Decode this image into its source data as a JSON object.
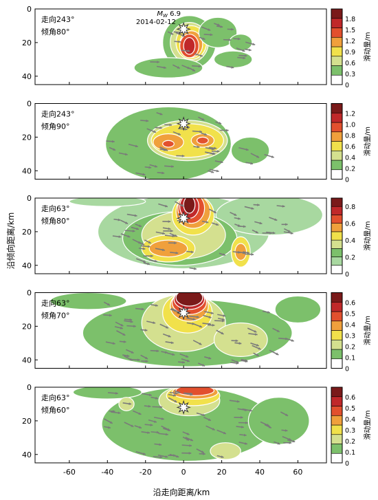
{
  "figure": {
    "xlabel": "沿走向距离/km",
    "ylabel": "沿倾向距离/km",
    "colorbar_label": "滑动量/m",
    "xticks": [
      -60,
      -40,
      -20,
      0,
      20,
      40,
      60
    ],
    "xlim": [
      -78,
      75
    ],
    "epicenter_label_mw": "M",
    "epicenter_label_mw_sub": "W",
    "epicenter_label_mag": "6.9",
    "epicenter_label_date": "2014-02-12"
  },
  "chart_data": [
    {
      "type": "heatmap",
      "strike_label": "走向243°",
      "dip_label": "倾角80°",
      "ylim": [
        0,
        45
      ],
      "yticks": [
        0,
        20,
        40
      ],
      "colorbar_ticks": [
        "0",
        "0.3",
        "0.6",
        "0.9",
        "1.2",
        "1.5",
        "1.8"
      ],
      "colorbar_colors": [
        "#ffffff",
        "#7cc06b",
        "#d4e08f",
        "#f1e14b",
        "#f0a03c",
        "#e2502e",
        "#c0282a",
        "#7a1a1a"
      ],
      "patches": [
        {
          "cx": 3,
          "cy": 20,
          "rx": 14,
          "ry": 16,
          "level": 1
        },
        {
          "cx": 3,
          "cy": 20,
          "rx": 10,
          "ry": 12,
          "level": 2
        },
        {
          "cx": 4,
          "cy": 20,
          "rx": 8,
          "ry": 10,
          "level": 3
        },
        {
          "cx": 4,
          "cy": 21,
          "rx": 6,
          "ry": 8,
          "level": 4
        },
        {
          "cx": 3,
          "cy": 22,
          "rx": 5,
          "ry": 7,
          "level": 5
        },
        {
          "cx": 3,
          "cy": 22,
          "rx": 3,
          "ry": 5,
          "level": 6
        },
        {
          "cx": 18,
          "cy": 14,
          "rx": 10,
          "ry": 9,
          "level": 1
        },
        {
          "cx": 26,
          "cy": 30,
          "rx": 10,
          "ry": 5,
          "level": 1
        },
        {
          "cx": 30,
          "cy": 20,
          "rx": 6,
          "ry": 5,
          "level": 1
        },
        {
          "cx": -8,
          "cy": 35,
          "rx": 18,
          "ry": 6,
          "level": 1
        }
      ],
      "epicenter": {
        "x": 0,
        "y": 12
      }
    },
    {
      "type": "heatmap",
      "strike_label": "走向243°",
      "dip_label": "倾角90°",
      "ylim": [
        0,
        45
      ],
      "yticks": [
        0,
        20,
        40
      ],
      "colorbar_ticks": [
        "0",
        "0.2",
        "0.4",
        "0.6",
        "0.8",
        "1.0",
        "1.2"
      ],
      "colorbar_colors": [
        "#ffffff",
        "#7cc06b",
        "#d4e08f",
        "#f1e14b",
        "#f0a03c",
        "#e2502e",
        "#c0282a",
        "#7a1a1a"
      ],
      "patches": [
        {
          "cx": -8,
          "cy": 24,
          "rx": 33,
          "ry": 22,
          "level": 1
        },
        {
          "cx": 35,
          "cy": 28,
          "rx": 10,
          "ry": 8,
          "level": 1
        },
        {
          "cx": 2,
          "cy": 22,
          "rx": 21,
          "ry": 12,
          "level": 2
        },
        {
          "cx": 2,
          "cy": 22,
          "rx": 19,
          "ry": 10,
          "level": 3
        },
        {
          "cx": -8,
          "cy": 23,
          "rx": 8,
          "ry": 5,
          "level": 4
        },
        {
          "cx": 10,
          "cy": 22,
          "rx": 6,
          "ry": 4,
          "level": 4
        },
        {
          "cx": -8,
          "cy": 24,
          "rx": 3,
          "ry": 2,
          "level": 5
        },
        {
          "cx": 10,
          "cy": 22,
          "rx": 3,
          "ry": 2,
          "level": 5
        }
      ],
      "epicenter": {
        "x": 0,
        "y": 12
      }
    },
    {
      "type": "heatmap",
      "strike_label": "走向63°",
      "dip_label": "倾角80°",
      "ylim": [
        0,
        45
      ],
      "yticks": [
        0,
        20,
        40
      ],
      "colorbar_ticks": [
        "0",
        "0.2",
        "0.4",
        "0.6",
        "0.8"
      ],
      "colorbar_colors": [
        "#ffffff",
        "#a8d8a0",
        "#7cc06b",
        "#d4e08f",
        "#f1e14b",
        "#f0a03c",
        "#e2502e",
        "#c0282a",
        "#7a1a1a"
      ],
      "patches": [
        {
          "cx": 0,
          "cy": 20,
          "rx": 45,
          "ry": 22,
          "level": 1
        },
        {
          "cx": 45,
          "cy": 10,
          "rx": 28,
          "ry": 12,
          "level": 1
        },
        {
          "cx": -40,
          "cy": 2,
          "rx": 20,
          "ry": 3,
          "level": 1
        },
        {
          "cx": -2,
          "cy": 24,
          "rx": 30,
          "ry": 16,
          "level": 2
        },
        {
          "cx": 0,
          "cy": 22,
          "rx": 22,
          "ry": 14,
          "level": 3
        },
        {
          "cx": -8,
          "cy": 30,
          "rx": 14,
          "ry": 8,
          "level": 4
        },
        {
          "cx": 30,
          "cy": 32,
          "rx": 5,
          "ry": 9,
          "level": 4
        },
        {
          "cx": 5,
          "cy": 10,
          "rx": 11,
          "ry": 12,
          "level": 4
        },
        {
          "cx": -8,
          "cy": 30,
          "rx": 10,
          "ry": 5,
          "level": 5
        },
        {
          "cx": 5,
          "cy": 8,
          "rx": 9,
          "ry": 10,
          "level": 5
        },
        {
          "cx": 30,
          "cy": 32,
          "rx": 3,
          "ry": 5,
          "level": 5
        },
        {
          "cx": 4,
          "cy": 6,
          "rx": 7,
          "ry": 9,
          "level": 6
        },
        {
          "cx": 3,
          "cy": 5,
          "rx": 5,
          "ry": 7,
          "level": 7
        },
        {
          "cx": 3,
          "cy": 4,
          "rx": 3,
          "ry": 5,
          "level": 8
        }
      ],
      "epicenter": {
        "x": 0,
        "y": 12
      }
    },
    {
      "type": "heatmap",
      "strike_label": "走向63°",
      "dip_label": "倾角70°",
      "ylim": [
        0,
        45
      ],
      "yticks": [
        0,
        20,
        40
      ],
      "colorbar_ticks": [
        "0",
        "0.1",
        "0.2",
        "0.3",
        "0.4",
        "0.5",
        "0.6"
      ],
      "colorbar_colors": [
        "#ffffff",
        "#7cc06b",
        "#d4e08f",
        "#f1e14b",
        "#f0a03c",
        "#e2502e",
        "#c0282a",
        "#7a1a1a"
      ],
      "patches": [
        {
          "cx": 2,
          "cy": 24,
          "rx": 55,
          "ry": 20,
          "level": 1
        },
        {
          "cx": 60,
          "cy": 10,
          "rx": 12,
          "ry": 8,
          "level": 1
        },
        {
          "cx": -50,
          "cy": 5,
          "rx": 20,
          "ry": 5,
          "level": 1
        },
        {
          "cx": 0,
          "cy": 18,
          "rx": 22,
          "ry": 17,
          "level": 2
        },
        {
          "cx": 30,
          "cy": 28,
          "rx": 14,
          "ry": 10,
          "level": 2
        },
        {
          "cx": 2,
          "cy": 12,
          "rx": 13,
          "ry": 12,
          "level": 3
        },
        {
          "cx": 3,
          "cy": 8,
          "rx": 10,
          "ry": 9,
          "level": 4
        },
        {
          "cx": 3,
          "cy": 6,
          "rx": 9,
          "ry": 7,
          "level": 5
        },
        {
          "cx": 3,
          "cy": 4,
          "rx": 8,
          "ry": 6,
          "level": 6
        },
        {
          "cx": 3,
          "cy": 3,
          "rx": 7,
          "ry": 5,
          "level": 7
        }
      ],
      "epicenter": {
        "x": 0,
        "y": 12
      }
    },
    {
      "type": "heatmap",
      "strike_label": "走向63°",
      "dip_label": "倾角60°",
      "ylim": [
        0,
        45
      ],
      "yticks": [
        0,
        20,
        40
      ],
      "colorbar_ticks": [
        "0",
        "0.1",
        "0.2",
        "0.3",
        "0.4",
        "0.5",
        "0.6"
      ],
      "colorbar_colors": [
        "#ffffff",
        "#7cc06b",
        "#d4e08f",
        "#f1e14b",
        "#f0a03c",
        "#e2502e",
        "#c0282a",
        "#7a1a1a"
      ],
      "patches": [
        {
          "cx": 2,
          "cy": 22,
          "rx": 45,
          "ry": 22,
          "level": 1
        },
        {
          "cx": 50,
          "cy": 20,
          "rx": 16,
          "ry": 14,
          "level": 1
        },
        {
          "cx": -40,
          "cy": 3,
          "rx": 18,
          "ry": 4,
          "level": 1
        },
        {
          "cx": 3,
          "cy": 8,
          "rx": 16,
          "ry": 9,
          "level": 2
        },
        {
          "cx": 22,
          "cy": 38,
          "rx": 8,
          "ry": 5,
          "level": 2
        },
        {
          "cx": -30,
          "cy": 10,
          "rx": 4,
          "ry": 4,
          "level": 2
        },
        {
          "cx": 5,
          "cy": 5,
          "rx": 14,
          "ry": 6,
          "level": 3
        },
        {
          "cx": 6,
          "cy": 3,
          "rx": 12,
          "ry": 4,
          "level": 4
        },
        {
          "cx": 6,
          "cy": 2,
          "rx": 10,
          "ry": 3,
          "level": 5
        }
      ],
      "epicenter": {
        "x": 0,
        "y": 12
      }
    }
  ]
}
